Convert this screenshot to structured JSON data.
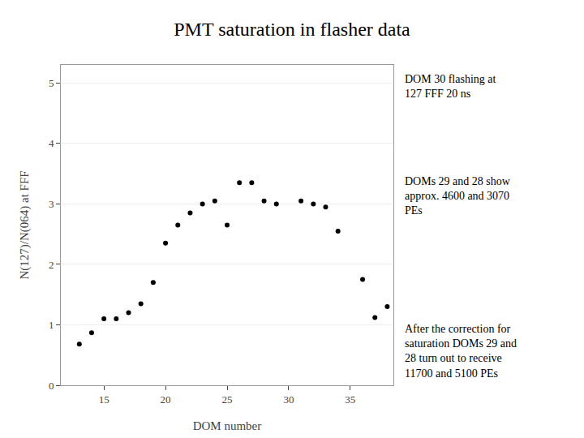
{
  "chart_data": {
    "type": "scatter",
    "title": "PMT saturation in flasher data",
    "xlabel": "DOM number",
    "ylabel": "N(127)/N(064) at FFF",
    "x": [
      13,
      14,
      15,
      16,
      17,
      18,
      19,
      20,
      21,
      22,
      23,
      24,
      25,
      26,
      27,
      28,
      29,
      31,
      32,
      33,
      34,
      36,
      37,
      38
    ],
    "values": [
      0.68,
      0.87,
      1.1,
      1.1,
      1.2,
      1.35,
      1.7,
      2.35,
      2.65,
      2.85,
      3.0,
      3.05,
      2.65,
      3.35,
      3.35,
      3.05,
      3.0,
      3.05,
      3.0,
      2.95,
      2.55,
      1.75,
      1.12,
      1.3
    ],
    "color": "#000000",
    "xlim": [
      11.5,
      38.5
    ],
    "ylim": [
      0,
      5.3
    ],
    "xticks": [
      15,
      20,
      25,
      30,
      35
    ],
    "yticks": [
      0,
      1,
      2,
      3,
      4,
      5
    ],
    "grid": true,
    "annotations": [
      "DOM 30 flashing at\n127 FFF 20 ns",
      "DOMs 29 and 28 show\napprox. 4600 and 3070\nPEs",
      "After the correction for\nsaturation DOMs 29 and\n28 turn out to receive\n11700 and 5100 PEs"
    ]
  }
}
